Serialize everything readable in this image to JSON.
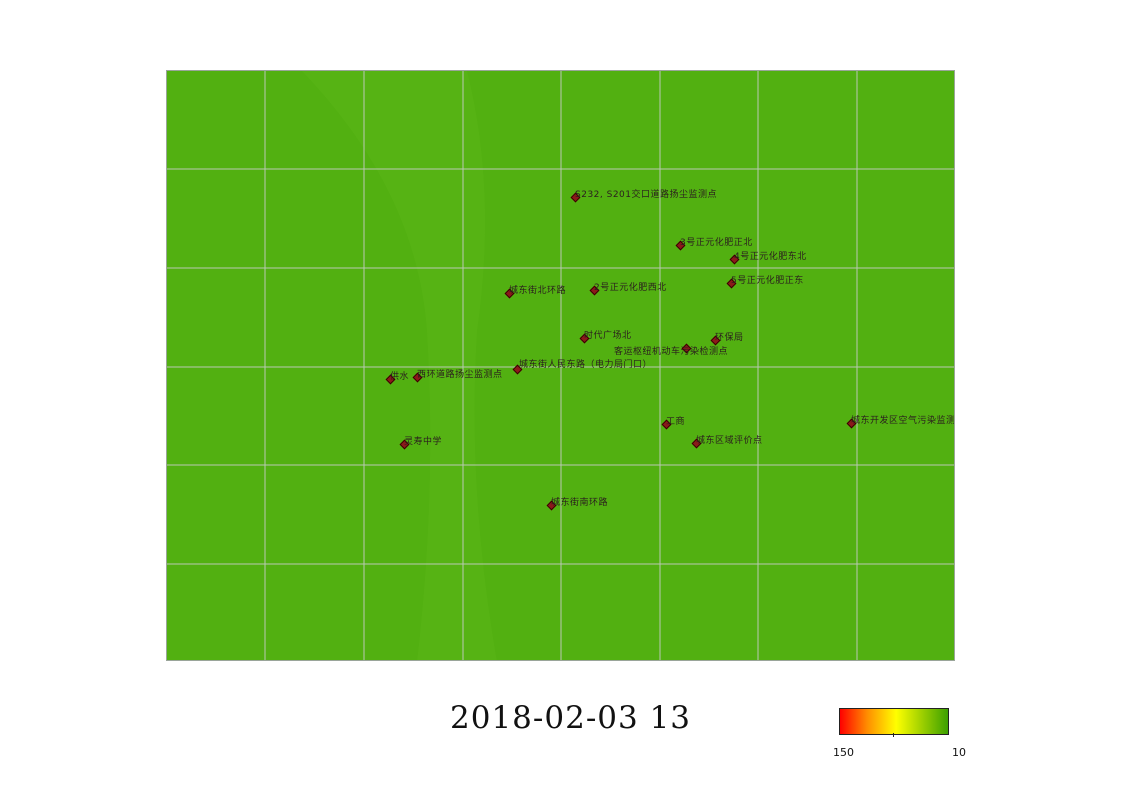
{
  "map": {
    "fill_color": "#52b011",
    "grid_color": "#b9c9b3",
    "stations": [
      {
        "id": "s232",
        "label": "S232, S201交口道路扬尘监测点"
      },
      {
        "id": "no3",
        "label": "3号正元化肥正北"
      },
      {
        "id": "no4",
        "label": "4号正元化肥东北"
      },
      {
        "id": "no5",
        "label": "5号正元化肥正东"
      },
      {
        "id": "no2",
        "label": "2号正元化肥西北"
      },
      {
        "id": "cdjbhl",
        "label": "城东街北环路"
      },
      {
        "id": "sdgc",
        "label": "时代广场北"
      },
      {
        "id": "hbj",
        "label": "环保局"
      },
      {
        "id": "kyzn",
        "label": "客运枢纽机动车污染检测点"
      },
      {
        "id": "cdrm",
        "label": "城东街人民东路（电力局门口）"
      },
      {
        "id": "gongshui",
        "label": "供水"
      },
      {
        "id": "xhdl",
        "label": "西环道路扬尘监测点"
      },
      {
        "id": "gongshang",
        "label": "工商"
      },
      {
        "id": "cdkf",
        "label": "城东开发区空气污染监测点"
      },
      {
        "id": "lszx",
        "label": "灵寿中学"
      },
      {
        "id": "cdqy",
        "label": "城东区域评价点"
      },
      {
        "id": "cdnh",
        "label": "城东街南环路"
      }
    ]
  },
  "timestamp": "2018-02-03  13",
  "legend": {
    "max_label": "150",
    "min_label": "10",
    "colors": [
      "#ff0000",
      "#ff8c00",
      "#ffff00",
      "#3ca000"
    ]
  }
}
